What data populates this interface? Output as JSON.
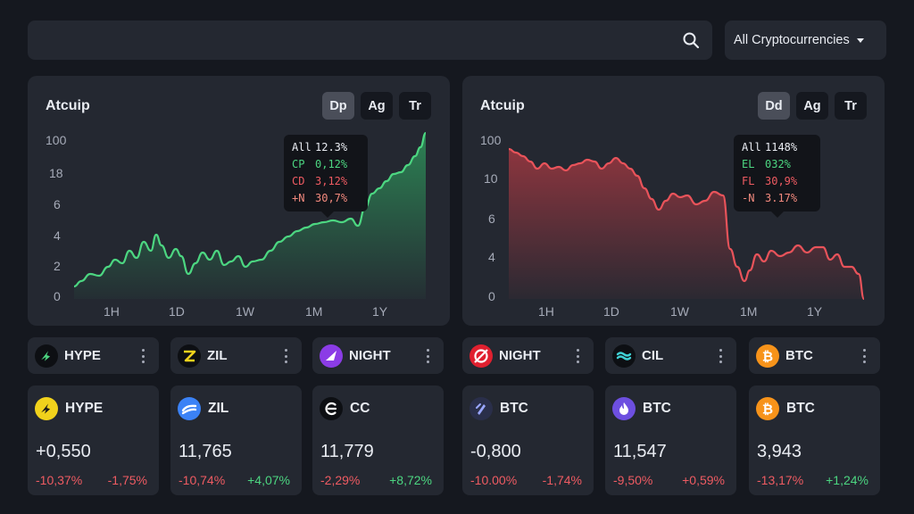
{
  "search": {
    "value": "",
    "placeholder": ""
  },
  "filter": {
    "selected": "All Cryptocurrencies"
  },
  "charts": [
    {
      "title": "Atcuip",
      "tabs": [
        "Dp",
        "Ag",
        "Tr"
      ],
      "active_tab": 0,
      "y_ticks": [
        "100",
        "18",
        "6",
        "4",
        "2",
        "0"
      ],
      "x_ticks": [
        "1H",
        "1D",
        "1W",
        "1M",
        "1Y"
      ],
      "tooltip": [
        {
          "k": "All",
          "v": "12.3%",
          "color": "white"
        },
        {
          "k": "CP",
          "v": "0,12%",
          "color": "green"
        },
        {
          "k": "CD",
          "v": "3,12%",
          "color": "red"
        },
        {
          "k": "+N",
          "v": "30,7%",
          "color": "salmon"
        }
      ],
      "line_color": "#4cd681",
      "trend": "up"
    },
    {
      "title": "Atcuip",
      "tabs": [
        "Dd",
        "Ag",
        "Tr"
      ],
      "active_tab": 0,
      "y_ticks": [
        "100",
        "10",
        "6",
        "4",
        "2",
        "0"
      ],
      "x_ticks": [
        "1H",
        "1D",
        "1W",
        "1M",
        "1Y"
      ],
      "tooltip": [
        {
          "k": "All",
          "v": "1148%",
          "color": "white"
        },
        {
          "k": "EL",
          "v": "032%",
          "color": "green"
        },
        {
          "k": "FL",
          "v": "30,9%",
          "color": "red"
        },
        {
          "k": "-N",
          "v": "3.17%",
          "color": "salmon"
        }
      ],
      "line_color": "#e8535a",
      "trend": "down"
    }
  ],
  "coin_pills": [
    {
      "symbol": "HYPE",
      "icon": "hype-icon",
      "icon_color": "#0d0f13"
    },
    {
      "symbol": "ZIL",
      "icon": "zil-icon",
      "icon_color": "#0d0f13"
    },
    {
      "symbol": "NIGHT",
      "icon": "night-icon",
      "icon_color": "#8b3ce6"
    },
    {
      "symbol": "NIGHT",
      "icon": "night-red-icon",
      "icon_color": "#e0202f"
    },
    {
      "symbol": "CIL",
      "icon": "cil-icon",
      "icon_color": "#0d0f13"
    },
    {
      "symbol": "BTC",
      "icon": "btc-icon",
      "icon_color": "#f7931a"
    }
  ],
  "coin_cards": [
    {
      "symbol": "HYPE",
      "icon": "hype-yellow-icon",
      "icon_color": "#f1d21c",
      "price": "+0,550",
      "change1": "-10,37%",
      "change2": "-1,75%",
      "change2_color": "red"
    },
    {
      "symbol": "ZIL",
      "icon": "zil-blue-icon",
      "icon_color": "#3b82f6",
      "price": "11,765",
      "change1": "-10,74%",
      "change2": "+4,07%",
      "change2_color": "green"
    },
    {
      "symbol": "CC",
      "icon": "cc-icon",
      "icon_color": "#0d0f13",
      "price": "11,779",
      "change1": "-2,29%",
      "change2": "+8,72%",
      "change2_color": "green"
    },
    {
      "symbol": "BTC",
      "icon": "btc-dark-icon",
      "icon_color": "#2a2f4a",
      "price": "-0,800",
      "change1": "-10.00%",
      "change2": "-1,74%",
      "change2_color": "red"
    },
    {
      "symbol": "BTC",
      "icon": "btc-purple-icon",
      "icon_color": "#6d4fe0",
      "price": "11,547",
      "change1": "-9,50%",
      "change2": "+0,59%",
      "change2_color": "red"
    },
    {
      "symbol": "BTC",
      "icon": "btc-icon",
      "icon_color": "#f7931a",
      "price": "3,943",
      "change1": "-13,17%",
      "change2": "+1,24%",
      "change2_color": "green"
    }
  ]
}
